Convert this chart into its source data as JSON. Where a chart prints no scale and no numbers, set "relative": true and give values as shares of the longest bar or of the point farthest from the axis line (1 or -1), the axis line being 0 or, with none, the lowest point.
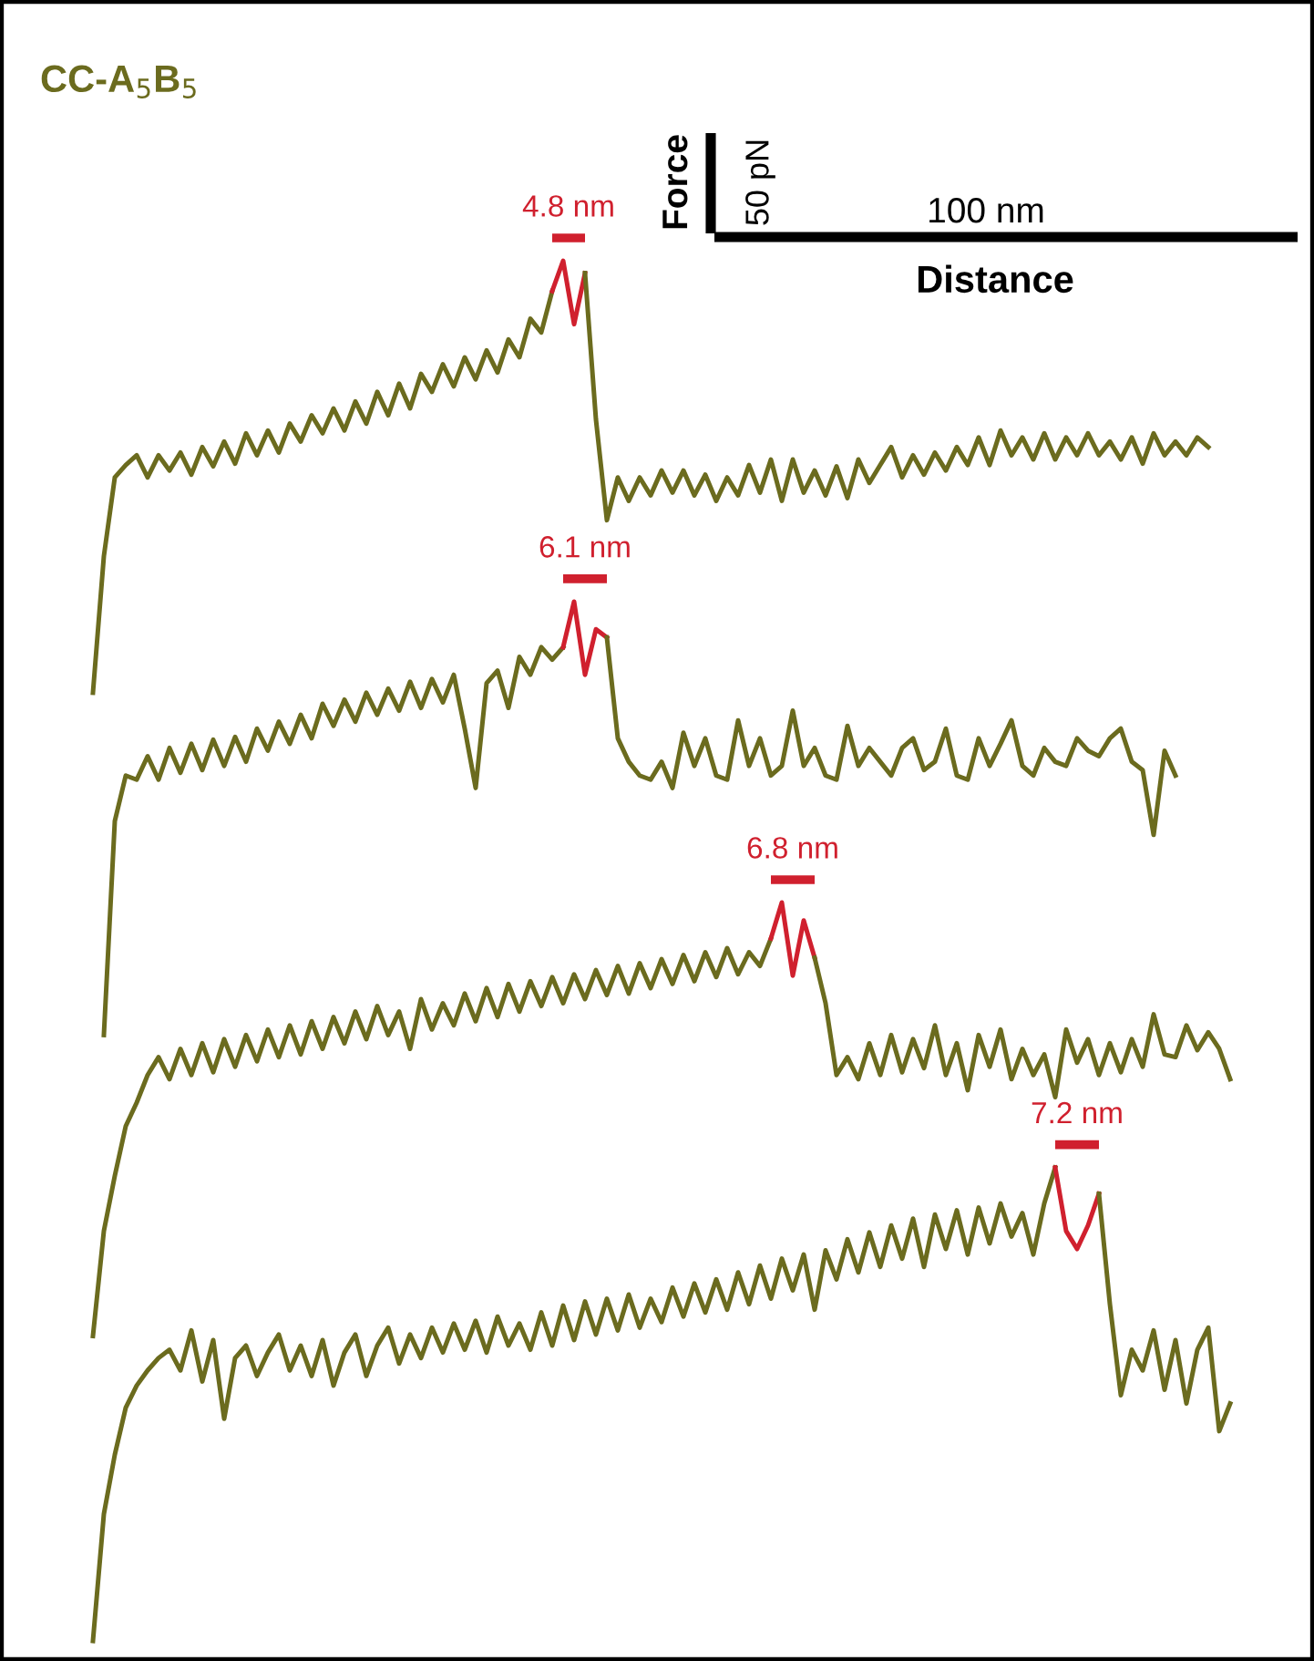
{
  "chart_data": {
    "type": "line",
    "relative": true,
    "title": "CC-A$_{5}$B$_{5}$",
    "xlabel": "Distance",
    "ylabel": "Force",
    "marker": "none",
    "line_style": "solid",
    "categories": [
      null,
      null,
      null,
      null,
      null,
      null,
      null,
      null,
      null,
      null,
      null,
      null,
      null,
      null,
      null,
      null,
      null,
      null,
      null,
      null,
      null,
      null,
      null,
      null,
      null,
      null,
      null,
      null,
      null,
      null,
      null,
      null,
      null,
      null,
      null,
      null,
      null,
      null,
      null,
      null,
      null,
      null,
      null,
      null,
      null,
      null,
      null,
      null,
      null,
      null,
      null,
      null,
      null,
      null,
      null,
      null,
      null,
      null,
      null,
      null,
      null,
      null,
      null,
      null,
      null,
      null,
      null,
      null,
      null,
      null,
      null,
      null,
      null,
      null,
      null,
      null,
      null,
      null,
      null,
      null,
      null,
      null,
      null,
      null,
      null,
      null,
      null,
      null,
      null,
      null,
      null,
      null,
      null,
      null,
      null,
      null,
      null,
      null,
      null,
      null,
      null,
      null,
      null,
      null,
      null
    ],
    "series": [
      {
        "color": "#6b6b1e",
        "values": [
          0.687,
          0.786,
          0.843,
          0.852,
          0.859,
          0.843,
          0.859,
          0.848,
          0.861,
          0.845,
          0.865,
          0.851,
          0.869,
          0.853,
          0.875,
          0.859,
          0.877,
          0.861,
          0.882,
          0.869,
          0.888,
          0.875,
          0.893,
          0.877,
          0.898,
          0.882,
          0.905,
          0.888,
          0.911,
          0.893,
          0.918,
          0.905,
          0.925,
          0.909,
          0.93,
          0.914,
          0.935,
          0.919,
          0.943,
          0.93,
          0.958,
          0.948,
          0.978,
          null,
          null,
          null,
          null,
          null,
          null,
          null,
          null,
          null,
          null,
          null,
          null,
          null,
          null,
          null,
          null,
          null,
          null,
          null,
          null,
          null,
          null,
          null,
          null,
          null,
          null,
          null,
          null,
          null,
          null,
          null,
          null,
          null,
          null,
          null,
          null,
          null,
          null,
          null,
          null,
          null,
          null,
          null,
          null,
          null,
          null,
          null,
          null,
          null,
          null,
          null,
          null,
          null,
          null,
          null,
          null,
          null,
          null,
          null,
          null,
          null,
          null
        ]
      },
      {
        "name": "4.8 nm",
        "color": "#d0202e",
        "values": [
          null,
          null,
          null,
          null,
          null,
          null,
          null,
          null,
          null,
          null,
          null,
          null,
          null,
          null,
          null,
          null,
          null,
          null,
          null,
          null,
          null,
          null,
          null,
          null,
          null,
          null,
          null,
          null,
          null,
          null,
          null,
          null,
          null,
          null,
          null,
          null,
          null,
          null,
          null,
          null,
          null,
          null,
          0.978,
          1.0,
          0.954,
          0.991,
          null,
          null,
          null,
          null,
          null,
          null,
          null,
          null,
          null,
          null,
          null,
          null,
          null,
          null,
          null,
          null,
          null,
          null,
          null,
          null,
          null,
          null,
          null,
          null,
          null,
          null,
          null,
          null,
          null,
          null,
          null,
          null,
          null,
          null,
          null,
          null,
          null,
          null,
          null,
          null,
          null,
          null,
          null,
          null,
          null,
          null,
          null,
          null,
          null,
          null,
          null,
          null,
          null,
          null,
          null,
          null,
          null,
          null,
          null
        ]
      },
      {
        "color": "#6b6b1e",
        "values": [
          null,
          null,
          null,
          null,
          null,
          null,
          null,
          null,
          null,
          null,
          null,
          null,
          null,
          null,
          null,
          null,
          null,
          null,
          null,
          null,
          null,
          null,
          null,
          null,
          null,
          null,
          null,
          null,
          null,
          null,
          null,
          null,
          null,
          null,
          null,
          null,
          null,
          null,
          null,
          null,
          null,
          null,
          null,
          null,
          null,
          0.991,
          0.885,
          0.812,
          0.843,
          0.826,
          0.843,
          0.83,
          0.848,
          0.832,
          0.848,
          0.83,
          0.845,
          0.826,
          0.843,
          0.83,
          0.852,
          0.832,
          0.856,
          0.826,
          0.856,
          0.832,
          0.848,
          0.83,
          0.851,
          0.828,
          0.856,
          0.839,
          0.852,
          0.865,
          0.843,
          0.859,
          0.845,
          0.861,
          0.848,
          0.865,
          0.852,
          0.872,
          0.852,
          0.877,
          0.859,
          0.872,
          0.856,
          0.875,
          0.856,
          0.872,
          0.859,
          0.875,
          0.859,
          0.869,
          0.856,
          0.872,
          0.853,
          0.875,
          0.859,
          0.869,
          0.859,
          0.872,
          0.865,
          null,
          null
        ]
      },
      {
        "color": "#6b6b1e",
        "values": [
          null,
          0.439,
          0.594,
          0.627,
          0.624,
          0.641,
          0.624,
          0.647,
          0.629,
          0.65,
          0.631,
          0.653,
          0.634,
          0.655,
          0.637,
          0.661,
          0.645,
          0.666,
          0.65,
          0.671,
          0.654,
          0.679,
          0.663,
          0.682,
          0.666,
          0.687,
          0.671,
          0.69,
          0.674,
          0.695,
          0.676,
          0.697,
          0.68,
          0.7,
          0.661,
          0.618,
          0.694,
          0.703,
          0.676,
          0.713,
          0.7,
          0.72,
          0.711,
          0.72,
          null,
          null,
          null,
          null,
          null,
          null,
          null,
          null,
          null,
          null,
          null,
          null,
          null,
          null,
          null,
          null,
          null,
          null,
          null,
          null,
          null,
          null,
          null,
          null,
          null,
          null,
          null,
          null,
          null,
          null,
          null,
          null,
          null,
          null,
          null,
          null,
          null,
          null,
          null,
          null,
          null,
          null,
          null,
          null,
          null,
          null,
          null,
          null,
          null,
          null,
          null,
          null,
          null,
          null,
          null,
          null,
          null,
          null,
          null,
          null,
          null
        ]
      },
      {
        "name": "6.1 nm",
        "color": "#d0202e",
        "values": [
          null,
          null,
          null,
          null,
          null,
          null,
          null,
          null,
          null,
          null,
          null,
          null,
          null,
          null,
          null,
          null,
          null,
          null,
          null,
          null,
          null,
          null,
          null,
          null,
          null,
          null,
          null,
          null,
          null,
          null,
          null,
          null,
          null,
          null,
          null,
          null,
          null,
          null,
          null,
          null,
          null,
          null,
          null,
          0.72,
          0.753,
          0.7,
          0.733,
          0.727,
          null,
          null,
          null,
          null,
          null,
          null,
          null,
          null,
          null,
          null,
          null,
          null,
          null,
          null,
          null,
          null,
          null,
          null,
          null,
          null,
          null,
          null,
          null,
          null,
          null,
          null,
          null,
          null,
          null,
          null,
          null,
          null,
          null,
          null,
          null,
          null,
          null,
          null,
          null,
          null,
          null,
          null,
          null,
          null,
          null,
          null,
          null,
          null,
          null,
          null,
          null,
          null,
          null,
          null,
          null,
          null,
          null
        ]
      },
      {
        "color": "#6b6b1e",
        "values": [
          null,
          null,
          null,
          null,
          null,
          null,
          null,
          null,
          null,
          null,
          null,
          null,
          null,
          null,
          null,
          null,
          null,
          null,
          null,
          null,
          null,
          null,
          null,
          null,
          null,
          null,
          null,
          null,
          null,
          null,
          null,
          null,
          null,
          null,
          null,
          null,
          null,
          null,
          null,
          null,
          null,
          null,
          null,
          null,
          null,
          null,
          null,
          0.727,
          0.654,
          0.637,
          0.627,
          0.624,
          0.637,
          0.618,
          0.658,
          0.634,
          0.654,
          0.627,
          0.624,
          0.667,
          0.634,
          0.654,
          0.627,
          0.634,
          0.674,
          0.634,
          0.647,
          0.627,
          0.624,
          0.663,
          0.634,
          0.647,
          0.637,
          0.627,
          0.647,
          0.654,
          0.631,
          0.637,
          0.661,
          0.627,
          0.624,
          0.654,
          0.634,
          0.65,
          0.667,
          0.634,
          0.627,
          0.647,
          0.637,
          0.634,
          0.654,
          0.645,
          0.641,
          0.654,
          0.661,
          0.637,
          0.631,
          0.584,
          0.645,
          0.627,
          null,
          null,
          null,
          null,
          null
        ]
      },
      {
        "color": "#6b6b1e",
        "values": [
          0.221,
          0.297,
          0.337,
          0.373,
          0.39,
          0.41,
          0.423,
          0.407,
          0.429,
          0.41,
          0.433,
          0.412,
          0.436,
          0.416,
          0.439,
          0.42,
          0.443,
          0.423,
          0.446,
          0.425,
          0.449,
          0.429,
          0.452,
          0.433,
          0.456,
          0.436,
          0.46,
          0.439,
          0.456,
          0.429,
          0.465,
          0.443,
          0.462,
          0.446,
          0.469,
          0.449,
          0.473,
          0.452,
          0.476,
          0.456,
          0.478,
          0.46,
          0.481,
          0.462,
          0.483,
          0.465,
          0.486,
          0.468,
          0.489,
          0.469,
          0.491,
          0.473,
          0.494,
          0.476,
          0.497,
          0.478,
          0.499,
          0.481,
          0.502,
          0.483,
          0.499,
          0.489,
          0.509,
          null,
          null,
          null,
          null,
          null,
          null,
          null,
          null,
          null,
          null,
          null,
          null,
          null,
          null,
          null,
          null,
          null,
          null,
          null,
          null,
          null,
          null,
          null,
          null,
          null,
          null,
          null,
          null,
          null,
          null,
          null,
          null,
          null,
          null,
          null,
          null,
          null,
          null,
          null,
          null,
          null,
          null
        ]
      },
      {
        "name": "6.8 nm",
        "color": "#d0202e",
        "values": [
          null,
          null,
          null,
          null,
          null,
          null,
          null,
          null,
          null,
          null,
          null,
          null,
          null,
          null,
          null,
          null,
          null,
          null,
          null,
          null,
          null,
          null,
          null,
          null,
          null,
          null,
          null,
          null,
          null,
          null,
          null,
          null,
          null,
          null,
          null,
          null,
          null,
          null,
          null,
          null,
          null,
          null,
          null,
          null,
          null,
          null,
          null,
          null,
          null,
          null,
          null,
          null,
          null,
          null,
          null,
          null,
          null,
          null,
          null,
          null,
          null,
          null,
          0.509,
          0.535,
          0.482,
          0.522,
          0.495,
          null,
          null,
          null,
          null,
          null,
          null,
          null,
          null,
          null,
          null,
          null,
          null,
          null,
          null,
          null,
          null,
          null,
          null,
          null,
          null,
          null,
          null,
          null,
          null,
          null,
          null,
          null,
          null,
          null,
          null,
          null,
          null,
          null,
          null,
          null,
          null,
          null,
          null
        ]
      },
      {
        "color": "#6b6b1e",
        "values": [
          null,
          null,
          null,
          null,
          null,
          null,
          null,
          null,
          null,
          null,
          null,
          null,
          null,
          null,
          null,
          null,
          null,
          null,
          null,
          null,
          null,
          null,
          null,
          null,
          null,
          null,
          null,
          null,
          null,
          null,
          null,
          null,
          null,
          null,
          null,
          null,
          null,
          null,
          null,
          null,
          null,
          null,
          null,
          null,
          null,
          null,
          null,
          null,
          null,
          null,
          null,
          null,
          null,
          null,
          null,
          null,
          null,
          null,
          null,
          null,
          null,
          null,
          null,
          null,
          null,
          null,
          0.495,
          0.462,
          0.41,
          0.423,
          0.407,
          0.433,
          0.41,
          0.439,
          0.412,
          0.436,
          0.415,
          0.446,
          0.41,
          0.433,
          0.399,
          0.439,
          0.416,
          0.443,
          0.407,
          0.429,
          0.41,
          0.425,
          0.394,
          0.443,
          0.419,
          0.436,
          0.41,
          0.433,
          0.412,
          0.436,
          0.416,
          0.454,
          0.425,
          0.423,
          0.446,
          0.428,
          0.441,
          0.429,
          0.407
        ]
      },
      {
        "color": "#6b6b1e",
        "values": [
          0.0,
          0.092,
          0.135,
          0.169,
          0.185,
          0.196,
          0.205,
          0.211,
          0.196,
          0.225,
          0.188,
          0.218,
          0.161,
          0.205,
          0.214,
          0.192,
          0.209,
          0.222,
          0.196,
          0.214,
          0.192,
          0.218,
          0.185,
          0.209,
          0.222,
          0.192,
          0.214,
          0.227,
          0.201,
          0.222,
          0.205,
          0.227,
          0.209,
          0.23,
          0.211,
          0.232,
          0.209,
          0.235,
          0.214,
          0.23,
          0.211,
          0.238,
          0.214,
          0.243,
          0.218,
          0.246,
          0.222,
          0.248,
          0.225,
          0.251,
          0.227,
          0.248,
          0.231,
          0.256,
          0.235,
          0.259,
          0.238,
          0.262,
          0.24,
          0.267,
          0.244,
          0.272,
          0.248,
          0.277,
          0.254,
          0.28,
          0.24,
          0.283,
          0.262,
          0.291,
          0.267,
          0.296,
          0.271,
          0.301,
          0.277,
          0.306,
          0.271,
          0.309,
          0.284,
          0.312,
          0.28,
          0.314,
          0.288,
          0.317,
          0.293,
          0.31,
          0.28,
          0.317,
          0.343,
          null,
          null,
          null,
          null,
          null,
          null,
          null,
          null,
          null,
          null,
          null,
          null,
          null,
          null,
          null,
          null
        ]
      },
      {
        "name": "7.2 nm",
        "color": "#d0202e",
        "values": [
          null,
          null,
          null,
          null,
          null,
          null,
          null,
          null,
          null,
          null,
          null,
          null,
          null,
          null,
          null,
          null,
          null,
          null,
          null,
          null,
          null,
          null,
          null,
          null,
          null,
          null,
          null,
          null,
          null,
          null,
          null,
          null,
          null,
          null,
          null,
          null,
          null,
          null,
          null,
          null,
          null,
          null,
          null,
          null,
          null,
          null,
          null,
          null,
          null,
          null,
          null,
          null,
          null,
          null,
          null,
          null,
          null,
          null,
          null,
          null,
          null,
          null,
          null,
          null,
          null,
          null,
          null,
          null,
          null,
          null,
          null,
          null,
          null,
          null,
          null,
          null,
          null,
          null,
          null,
          null,
          null,
          null,
          null,
          null,
          null,
          null,
          null,
          null,
          0.343,
          0.297,
          0.284,
          0.301,
          0.324,
          null,
          null,
          null,
          null,
          null,
          null,
          null,
          null,
          null,
          null,
          null,
          null
        ]
      },
      {
        "color": "#6b6b1e",
        "values": [
          null,
          null,
          null,
          null,
          null,
          null,
          null,
          null,
          null,
          null,
          null,
          null,
          null,
          null,
          null,
          null,
          null,
          null,
          null,
          null,
          null,
          null,
          null,
          null,
          null,
          null,
          null,
          null,
          null,
          null,
          null,
          null,
          null,
          null,
          null,
          null,
          null,
          null,
          null,
          null,
          null,
          null,
          null,
          null,
          null,
          null,
          null,
          null,
          null,
          null,
          null,
          null,
          null,
          null,
          null,
          null,
          null,
          null,
          null,
          null,
          null,
          null,
          null,
          null,
          null,
          null,
          null,
          null,
          null,
          null,
          null,
          null,
          null,
          null,
          null,
          null,
          null,
          null,
          null,
          null,
          null,
          null,
          null,
          null,
          null,
          null,
          null,
          null,
          null,
          null,
          null,
          null,
          0.324,
          0.244,
          0.178,
          0.211,
          0.196,
          0.225,
          0.182,
          0.218,
          0.172,
          0.211,
          0.227,
          0.152,
          0.172
        ]
      }
    ],
    "annotations": [
      "50 pN",
      "100 nm"
    ]
  }
}
